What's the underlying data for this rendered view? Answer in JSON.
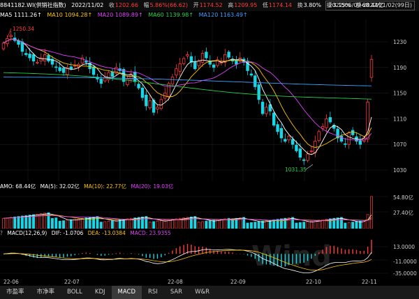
{
  "header": {
    "code": "8841182.WI(供销社指数)",
    "date": "2022/11/02",
    "close_label": "收",
    "close": "1202.66",
    "change_label": "幅",
    "change": "5.86%(66.62)",
    "open_label": "开",
    "open": "1174.52",
    "high_label": "高",
    "high": "1209.95",
    "low_label": "低",
    "low": "1174.14",
    "turnover_label": "换",
    "turnover": "3.80%",
    "amplitude_label": "振",
    "amplitude": "3.15%",
    "amount_label": "额",
    "amount": "68.44亿",
    "date_range": "2022/06/09-2022/11/02(99日)"
  },
  "ma": {
    "ma5": "MA5 1111.26↑",
    "ma10": "MA10 1094.28↑",
    "ma20": "MA20 1089.89↑",
    "ma60": "MA60 1139.98↑",
    "ma120": "MA120 1163.49↑"
  },
  "annotations": {
    "high": "1250.34",
    "low": "1031.35"
  },
  "price_axis": [
    "1230",
    "1190",
    "1150",
    "1110",
    "1070",
    "1030"
  ],
  "amo": {
    "label": "AMO: 68.44亿",
    "ma5": "MA(5): 32.02亿",
    "ma10": "MA(10): 22.77亿",
    "ma20": "MA(20): 19.03亿",
    "axis": [
      "54.80亿",
      "27.40亿"
    ]
  },
  "macd": {
    "label": "MACD(12,26,9)",
    "dif": "DIF: -1.0706",
    "dea": "DEA: -13.0384",
    "macd": "MACD: 23.9355",
    "axis": [
      "13.0000",
      "-11.0000",
      "-35.0000"
    ]
  },
  "x_axis": [
    "22-06",
    "22-07",
    "22-08",
    "22-09",
    "22-10",
    "22-11"
  ],
  "watermark": "Wind",
  "tabs": [
    "市盈率",
    "市净率",
    "BOLL",
    "KDJ",
    "MACD",
    "RSI",
    "SAR",
    "W&R"
  ],
  "active_tab": "MACD",
  "colors": {
    "up": "#ff3b3b",
    "down": "#19d6e6",
    "ma5": "#ffffff",
    "ma10": "#ffc400",
    "ma20": "#e040fb",
    "ma60": "#23d14a",
    "ma120": "#3aa0ff"
  },
  "chart_data": {
    "type": "candlestick",
    "closes": [
      1228,
      1235,
      1240,
      1232,
      1226,
      1215,
      1210,
      1205,
      1200,
      1198,
      1205,
      1210,
      1200,
      1195,
      1190,
      1185,
      1182,
      1190,
      1188,
      1193,
      1195,
      1205,
      1198,
      1188,
      1179,
      1172,
      1165,
      1174,
      1182,
      1176,
      1190,
      1185,
      1168,
      1172,
      1180,
      1168,
      1158,
      1143,
      1130,
      1138,
      1120,
      1128,
      1140,
      1150,
      1165,
      1175,
      1188,
      1196,
      1204,
      1210,
      1198,
      1188,
      1200,
      1212,
      1205,
      1195,
      1190,
      1202,
      1198,
      1210,
      1206,
      1200,
      1195,
      1205,
      1198,
      1185,
      1178,
      1160,
      1140,
      1118,
      1128,
      1122,
      1100,
      1090,
      1080,
      1075,
      1083,
      1070,
      1060,
      1050,
      1045,
      1055,
      1060,
      1075,
      1090,
      1098,
      1110,
      1105,
      1095,
      1080,
      1075,
      1070,
      1088,
      1085,
      1075,
      1070,
      1080,
      1136,
      1202.66
    ],
    "amo_max_label": "54.80亿"
  }
}
